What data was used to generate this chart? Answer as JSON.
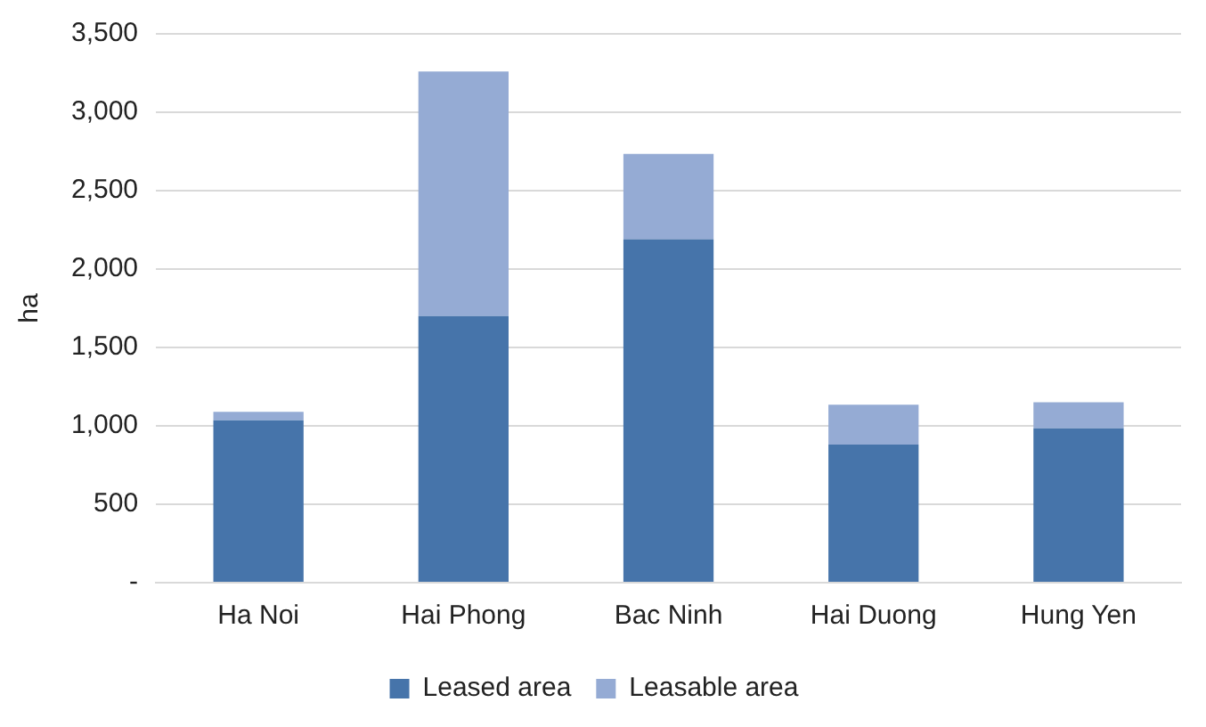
{
  "chart_data": {
    "type": "bar",
    "stacked": true,
    "ylabel": "ha",
    "categories": [
      "Ha Noi",
      "Hai Phong",
      "Bac Ninh",
      "Hai Duong",
      "Hung Yen"
    ],
    "series": [
      {
        "name": "Leased area",
        "color": "#4674aa",
        "values": [
          1035,
          1700,
          2190,
          880,
          985
        ]
      },
      {
        "name": "Leasable area",
        "color": "#95abd4",
        "values": [
          55,
          1560,
          545,
          255,
          165
        ]
      }
    ],
    "ylim": [
      0,
      3500
    ],
    "yticks": [
      {
        "value": 0,
        "label": "-"
      },
      500,
      {
        "value": 1000,
        "label": "1,000"
      },
      {
        "value": 1500,
        "label": "1,500"
      },
      {
        "value": 2000,
        "label": "2,000"
      },
      {
        "value": 2500,
        "label": "2,500"
      },
      {
        "value": 3000,
        "label": "3,000"
      },
      {
        "value": 3500,
        "label": "3,500"
      }
    ],
    "grid": "y",
    "legend": "bottom"
  }
}
